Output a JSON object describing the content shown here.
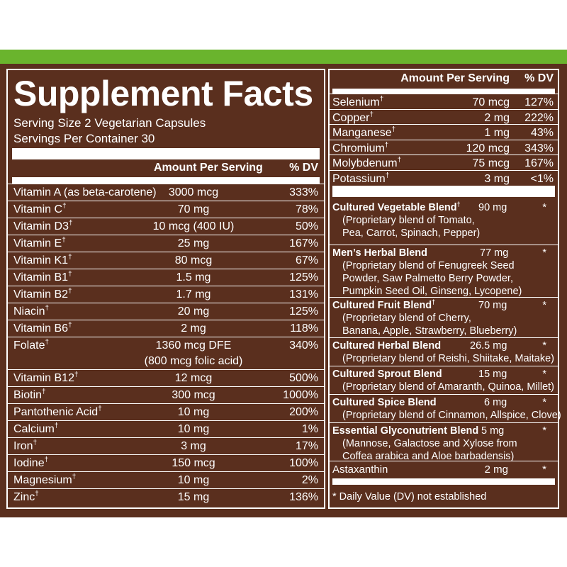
{
  "title": "Supplement Facts",
  "serving_size": "Serving Size 2 Vegetarian Capsules",
  "servings_per_container": "Servings Per Container 30",
  "header": {
    "amount": "Amount Per Serving",
    "dv": "% DV"
  },
  "left_rows": [
    {
      "name": "Vitamin A (as beta-carotene)",
      "mark": "",
      "amount": "3000 mcg",
      "dv": "333%"
    },
    {
      "name": "Vitamin C",
      "mark": "†",
      "amount": "70 mg",
      "dv": "78%"
    },
    {
      "name": "Vitamin D3",
      "mark": "†",
      "amount": "10 mcg (400 IU)",
      "dv": "50%"
    },
    {
      "name": "Vitamin E",
      "mark": "†",
      "amount": "25 mg",
      "dv": "167%"
    },
    {
      "name": "Vitamin K1",
      "mark": "†",
      "amount": "80 mcg",
      "dv": "67%"
    },
    {
      "name": "Vitamin B1",
      "mark": "†",
      "amount": "1.5 mg",
      "dv": "125%"
    },
    {
      "name": "Vitamin B2",
      "mark": "†",
      "amount": "1.7 mg",
      "dv": "131%"
    },
    {
      "name": "Niacin",
      "mark": "†",
      "amount": "20 mg",
      "dv": "125%"
    },
    {
      "name": "Vitamin B6",
      "mark": "†",
      "amount": "2 mg",
      "dv": "118%"
    },
    {
      "name": "Folate",
      "mark": "†",
      "amount": "1360 mcg DFE",
      "amount2": "(800 mcg folic acid)",
      "dv": "340%"
    },
    {
      "name": "Vitamin B12",
      "mark": "†",
      "amount": "12 mcg",
      "dv": "500%"
    },
    {
      "name": "Biotin",
      "mark": "†",
      "amount": "300 mcg",
      "dv": "1000%"
    },
    {
      "name": "Pantothenic Acid",
      "mark": "†",
      "amount": "10 mg",
      "dv": "200%"
    },
    {
      "name": "Calcium",
      "mark": "†",
      "amount": "10 mg",
      "dv": "1%"
    },
    {
      "name": "Iron",
      "mark": "†",
      "amount": "3 mg",
      "dv": "17%"
    },
    {
      "name": "Iodine",
      "mark": "†",
      "amount": "150 mcg",
      "dv": "100%"
    },
    {
      "name": "Magnesium",
      "mark": "†",
      "amount": "10 mg",
      "dv": "2%"
    },
    {
      "name": "Zinc",
      "mark": "†",
      "amount": "15 mg",
      "dv": "136%"
    }
  ],
  "right_rows": [
    {
      "name": "Selenium",
      "mark": "†",
      "amount": "70 mcg",
      "dv": "127%"
    },
    {
      "name": "Copper",
      "mark": "†",
      "amount": "2 mg",
      "dv": "222%"
    },
    {
      "name": "Manganese",
      "mark": "†",
      "amount": "1 mg",
      "dv": "43%"
    },
    {
      "name": "Chromium",
      "mark": "†",
      "amount": "120 mcg",
      "dv": "343%"
    },
    {
      "name": "Molybdenum",
      "mark": "†",
      "amount": "75 mcg",
      "dv": "167%"
    },
    {
      "name": "Potassium",
      "mark": "†",
      "amount": "3 mg",
      "dv": "<1%"
    }
  ],
  "blends": [
    {
      "name": "Cultured Vegetable Blend",
      "mark": "†",
      "amount": "90 mg",
      "dv": "*",
      "desc": [
        "(Proprietary blend of Tomato,",
        "Pea, Carrot, Spinach, Pepper)"
      ]
    },
    {
      "name": "Men’s Herbal Blend",
      "mark": "",
      "amount": "77 mg",
      "dv": "*",
      "desc": [
        "(Proprietary blend of Fenugreek Seed",
        "Powder, Saw Palmetto Berry Powder,",
        "Pumpkin Seed Oil, Ginseng, Lycopene)"
      ]
    },
    {
      "name": "Cultured Fruit Blend",
      "mark": "†",
      "amount": "70 mg",
      "dv": "*",
      "desc": [
        "(Proprietary blend of Cherry,",
        "Banana, Apple, Strawberry, Blueberry)"
      ]
    },
    {
      "name": "Cultured Herbal Blend",
      "mark": "",
      "amount": "26.5 mg",
      "dv": "*",
      "desc": [
        "(Proprietary blend of Reishi, Shiitake, Maitake)"
      ]
    },
    {
      "name": "Cultured Sprout Blend",
      "mark": "",
      "amount": "15 mg",
      "dv": "*",
      "desc": [
        "(Proprietary blend of Amaranth, Quinoa, Millet)"
      ]
    },
    {
      "name": "Cultured Spice Blend",
      "mark": "",
      "amount": "6 mg",
      "dv": "*",
      "desc": [
        "(Proprietary blend of Cinnamon, Allspice, Clove)"
      ]
    },
    {
      "name": "Essential Glyconutrient Blend",
      "mark": "",
      "amount": "5 mg",
      "dv": "*",
      "desc": [
        "(Mannose, Galactose and Xylose from",
        "Coffea arabica and Aloe barbadensis)"
      ]
    }
  ],
  "astaxanthin": {
    "name": "Astaxanthin",
    "amount": "2 mg",
    "dv": "*"
  },
  "footnote": "* Daily Value (DV) not established",
  "colors": {
    "label_brown": "#5a2f1e",
    "strip_green": "#6ab42d",
    "text": "#ffffff"
  }
}
